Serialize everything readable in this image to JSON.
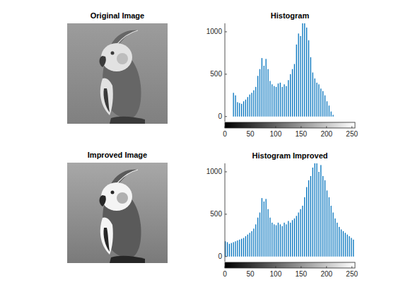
{
  "chart_data": [
    {
      "type": "image",
      "title": "Original Image"
    },
    {
      "type": "histogram",
      "title": "Histogram",
      "bins": [
        0,
        4,
        8,
        12,
        16,
        20,
        24,
        28,
        32,
        36,
        40,
        44,
        48,
        52,
        56,
        60,
        64,
        68,
        72,
        76,
        80,
        84,
        88,
        92,
        96,
        100,
        104,
        108,
        112,
        116,
        120,
        124,
        128,
        132,
        136,
        140,
        144,
        148,
        152,
        156,
        160,
        164,
        168,
        172,
        176,
        180,
        184,
        188,
        192,
        196,
        200,
        204,
        208,
        212,
        216,
        220,
        224,
        228,
        232,
        236,
        240,
        244,
        248,
        252,
        256
      ],
      "counts": [
        0,
        0,
        0,
        0,
        280,
        250,
        170,
        160,
        150,
        180,
        200,
        230,
        260,
        280,
        310,
        350,
        480,
        560,
        690,
        600,
        680,
        560,
        420,
        380,
        360,
        350,
        390,
        400,
        350,
        380,
        360,
        430,
        500,
        560,
        620,
        850,
        980,
        950,
        1100,
        1100,
        1050,
        900,
        700,
        520,
        450,
        400,
        380,
        330,
        300,
        250,
        180,
        130,
        60,
        20,
        0,
        0,
        0,
        0,
        0,
        0,
        0,
        0,
        0,
        0
      ],
      "color": "#0072bd",
      "xlim": [
        0,
        256
      ],
      "ylim": [
        -60,
        1100
      ],
      "xticks": [
        0,
        50,
        100,
        150,
        200,
        250
      ],
      "yticks": [
        0,
        500,
        1000
      ]
    },
    {
      "type": "image",
      "title": "Improved Image"
    },
    {
      "type": "histogram",
      "title": "Histogram Improved",
      "bins": [
        0,
        4,
        8,
        12,
        16,
        20,
        24,
        28,
        32,
        36,
        40,
        44,
        48,
        52,
        56,
        60,
        64,
        68,
        72,
        76,
        80,
        84,
        88,
        92,
        96,
        100,
        104,
        108,
        112,
        116,
        120,
        124,
        128,
        132,
        136,
        140,
        144,
        148,
        152,
        156,
        160,
        164,
        168,
        172,
        176,
        180,
        184,
        188,
        192,
        196,
        200,
        204,
        208,
        212,
        216,
        220,
        224,
        228,
        232,
        236,
        240,
        244,
        248,
        252,
        256
      ],
      "counts": [
        180,
        170,
        150,
        160,
        170,
        180,
        190,
        200,
        210,
        220,
        240,
        260,
        280,
        300,
        330,
        380,
        460,
        520,
        690,
        650,
        680,
        560,
        460,
        400,
        380,
        370,
        400,
        380,
        360,
        400,
        380,
        420,
        400,
        430,
        450,
        480,
        520,
        560,
        600,
        700,
        820,
        900,
        950,
        1050,
        1100,
        1100,
        1000,
        1080,
        950,
        900,
        780,
        700,
        600,
        520,
        450,
        400,
        350,
        320,
        300,
        280,
        260,
        240,
        220,
        200
      ],
      "color": "#0072bd",
      "xlim": [
        0,
        256
      ],
      "ylim": [
        -60,
        1100
      ],
      "xticks": [
        0,
        50,
        100,
        150,
        200,
        250
      ],
      "yticks": [
        0,
        500,
        1000
      ]
    }
  ]
}
